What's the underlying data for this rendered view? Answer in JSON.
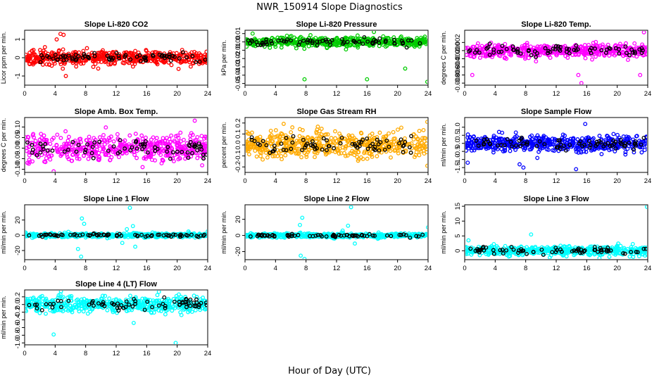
{
  "figure": {
    "title": "NWR_150914  Slope Diagnostics",
    "xlabel": "Hour of Day (UTC)"
  },
  "chart_data": [
    {
      "type": "scatter",
      "title": "Slope Li-820 CO2",
      "ylabel": "Licor ppm per min.",
      "xlim": [
        0,
        24
      ],
      "ylim": [
        -1.5,
        1.5
      ],
      "xticks": [
        0,
        4,
        8,
        12,
        16,
        20,
        24
      ],
      "xtick_labels": [
        "0",
        "4",
        "8",
        "12",
        "16",
        "20",
        "24"
      ],
      "yticks": [
        -1,
        0,
        1
      ],
      "ytick_labels": [
        "-1",
        "0",
        "1"
      ],
      "color": "#ff0000",
      "spread": 0.35,
      "outliers": [
        [
          4.7,
          1.3
        ],
        [
          5.1,
          1.25
        ],
        [
          5.0,
          -0.6
        ],
        [
          5.4,
          -1.0
        ],
        [
          4.2,
          1.0
        ],
        [
          9.0,
          -0.5
        ]
      ],
      "grid": false,
      "legend": "none"
    },
    {
      "type": "scatter",
      "title": "Slope Li-820 Pressure",
      "ylabel": "kPa per min.",
      "xlim": [
        0,
        24
      ],
      "ylim": [
        -0.052,
        0.014
      ],
      "xticks": [
        0,
        4,
        8,
        12,
        16,
        20,
        24
      ],
      "xtick_labels": [
        "0",
        "4",
        "8",
        "12",
        "16",
        "20",
        "24"
      ],
      "yticks": [
        0.01,
        0,
        -0.01,
        -0.02,
        -0.03,
        -0.04,
        -0.05
      ],
      "ytick_labels": [
        "0.01",
        "0.00",
        "-0.01",
        "-0.02",
        "-0.03",
        "-0.04",
        "-0.05"
      ],
      "color": "#00cc00",
      "spread": 0.006,
      "outliers": [
        [
          7.8,
          -0.045
        ],
        [
          16.0,
          -0.045
        ],
        [
          21.0,
          -0.032
        ],
        [
          23.9,
          -0.048
        ],
        [
          16.9,
          0.012
        ],
        [
          1.0,
          0.01
        ]
      ],
      "grid": false,
      "legend": "none"
    },
    {
      "type": "scatter",
      "title": "Slope Li-820 Temp.",
      "ylabel": "degrees C per min.",
      "xlim": [
        0,
        24
      ],
      "ylim": [
        -0.0085,
        0.005
      ],
      "xticks": [
        0,
        4,
        8,
        12,
        16,
        20,
        24
      ],
      "xtick_labels": [
        "0",
        "4",
        "8",
        "12",
        "16",
        "20",
        "24"
      ],
      "yticks": [
        0.002,
        0,
        -0.002,
        -0.004,
        -0.006,
        -0.008
      ],
      "ytick_labels": [
        "0.002",
        "0.000",
        "-0.002",
        "-0.004",
        "-0.006",
        "-0.008"
      ],
      "color": "#ff00ff",
      "spread": 0.0016,
      "outliers": [
        [
          23.5,
          0.0045
        ],
        [
          15.3,
          -0.008
        ],
        [
          1.0,
          -0.006
        ],
        [
          14.9,
          -0.006
        ],
        [
          23.0,
          -0.006
        ]
      ],
      "grid": false,
      "legend": "none"
    },
    {
      "type": "scatter",
      "title": "Slope Amb. Box Temp.",
      "ylabel": "degrees C per min.",
      "xlim": [
        0,
        24
      ],
      "ylim": [
        -0.115,
        0.145
      ],
      "xticks": [
        0,
        4,
        8,
        12,
        16,
        20,
        24
      ],
      "xtick_labels": [
        "0",
        "4",
        "8",
        "12",
        "16",
        "20",
        "24"
      ],
      "yticks": [
        0.1,
        0.05,
        0,
        -0.05,
        -0.1
      ],
      "ytick_labels": [
        "0.10",
        "0.05",
        "0.00",
        "-0.05",
        "-0.10"
      ],
      "color": "#ff00ff",
      "spread": 0.06,
      "outliers": [
        [
          22.3,
          0.13
        ],
        [
          3.8,
          -0.11
        ]
      ],
      "grid": false,
      "legend": "none"
    },
    {
      "type": "scatter",
      "title": "Slope Gas Stream RH",
      "ylabel": "percent per min.",
      "xlim": [
        0,
        24
      ],
      "ylim": [
        -0.25,
        0.25
      ],
      "xticks": [
        0,
        4,
        8,
        12,
        16,
        20,
        24
      ],
      "xtick_labels": [
        "0",
        "4",
        "8",
        "12",
        "16",
        "20",
        "24"
      ],
      "yticks": [
        0.2,
        0.1,
        0,
        -0.1,
        -0.2
      ],
      "ytick_labels": [
        "0.2",
        "0.1",
        "0.0",
        "-0.1",
        "-0.2"
      ],
      "color": "#ffaa00",
      "spread": 0.12,
      "outliers": [
        [
          23.9,
          0.21
        ],
        [
          23.9,
          -0.19
        ]
      ],
      "grid": false,
      "legend": "none"
    },
    {
      "type": "scatter",
      "title": "Slope Sample Flow",
      "ylabel": "ml/min per min.",
      "xlim": [
        0,
        24
      ],
      "ylim": [
        -1.8,
        1.6
      ],
      "xticks": [
        0,
        4,
        8,
        12,
        16,
        20,
        24
      ],
      "xtick_labels": [
        "0",
        "4",
        "8",
        "12",
        "16",
        "20",
        "24"
      ],
      "yticks": [
        1,
        0.5,
        0,
        -0.5,
        -1,
        -1.5
      ],
      "ytick_labels": [
        "1.0",
        "0.5",
        "0.0",
        "-0.5",
        "-1.0",
        "-1.5"
      ],
      "color": "#0000ff",
      "spread": 0.5,
      "outliers": [
        [
          14.6,
          -1.6
        ],
        [
          7.7,
          -1.5
        ],
        [
          7.2,
          -1.3
        ],
        [
          0.4,
          -1.2
        ],
        [
          15.8,
          1.2
        ]
      ],
      "grid": false,
      "legend": "none"
    },
    {
      "type": "scatter",
      "title": "Slope Line 1 Flow",
      "ylabel": "ml/min per min.",
      "xlim": [
        0,
        24
      ],
      "ylim": [
        -32,
        40
      ],
      "xticks": [
        0,
        4,
        8,
        12,
        16,
        20,
        24
      ],
      "xtick_labels": [
        "0",
        "4",
        "8",
        "12",
        "16",
        "20",
        "24"
      ],
      "yticks": [
        20,
        0,
        -20
      ],
      "ytick_labels": [
        "20",
        "0",
        "-20"
      ],
      "color": "#00ffff",
      "spread": 2.5,
      "outliers": [
        [
          7.5,
          22
        ],
        [
          7.8,
          15
        ],
        [
          7.0,
          -18
        ],
        [
          7.4,
          -28
        ],
        [
          13.8,
          36
        ],
        [
          14.2,
          12
        ],
        [
          13.4,
          8
        ],
        [
          14.5,
          -15
        ],
        [
          12.8,
          -10
        ],
        [
          24.0,
          5
        ]
      ],
      "grid": false,
      "legend": "none"
    },
    {
      "type": "scatter",
      "title": "Slope Line 2 Flow",
      "ylabel": "ml/min per min.",
      "xlim": [
        0,
        24
      ],
      "ylim": [
        -30,
        38
      ],
      "xticks": [
        0,
        4,
        8,
        12,
        16,
        20,
        24
      ],
      "xtick_labels": [
        "0",
        "4",
        "8",
        "12",
        "16",
        "20",
        "24"
      ],
      "yticks": [
        20,
        0,
        -20
      ],
      "ytick_labels": [
        "20",
        "0",
        "-20"
      ],
      "color": "#00ffff",
      "spread": 2.5,
      "outliers": [
        [
          7.5,
          22
        ],
        [
          7.2,
          13
        ],
        [
          7.3,
          -25
        ],
        [
          7.8,
          -29
        ],
        [
          13.9,
          35
        ],
        [
          13.5,
          12
        ],
        [
          14.4,
          -10
        ],
        [
          24.0,
          10
        ],
        [
          12.8,
          6
        ]
      ],
      "grid": false,
      "legend": "none"
    },
    {
      "type": "scatter",
      "title": "Slope Line 3 Flow",
      "ylabel": "ml/min per min.",
      "xlim": [
        0,
        24
      ],
      "ylim": [
        -3,
        15.5
      ],
      "xticks": [
        0,
        4,
        8,
        12,
        16,
        20,
        24
      ],
      "xtick_labels": [
        "0",
        "4",
        "8",
        "12",
        "16",
        "20",
        "24"
      ],
      "yticks": [
        15,
        10,
        5,
        0
      ],
      "ytick_labels": [
        "15",
        "10",
        "5",
        "0"
      ],
      "color": "#00ffff",
      "spread": 1.6,
      "outliers": [
        [
          23.9,
          14.8
        ],
        [
          8.7,
          5.5
        ],
        [
          0.5,
          3.5
        ]
      ],
      "grid": false,
      "legend": "none"
    },
    {
      "type": "scatter",
      "title": "Slope Line 4 (LT) Flow",
      "ylabel": "ml/min per min.",
      "xlim": [
        0,
        24
      ],
      "ylim": [
        -1.05,
        0.38
      ],
      "xticks": [
        0,
        4,
        8,
        12,
        16,
        20,
        24
      ],
      "xtick_labels": [
        "0",
        "4",
        "8",
        "12",
        "16",
        "20",
        "24"
      ],
      "yticks": [
        0.2,
        0,
        -0.2,
        -0.4,
        -0.6,
        -0.8,
        -1
      ],
      "ytick_labels": [
        "0.2",
        "0.0",
        "-0.2",
        "-0.4",
        "-0.6",
        "-0.8",
        "-1.0"
      ],
      "color": "#00ffff",
      "spread": 0.2,
      "outliers": [
        [
          19.8,
          -1.0
        ],
        [
          3.8,
          -0.78
        ],
        [
          14.3,
          -0.48
        ],
        [
          17.6,
          0.33
        ]
      ],
      "grid": false,
      "legend": "none"
    }
  ]
}
